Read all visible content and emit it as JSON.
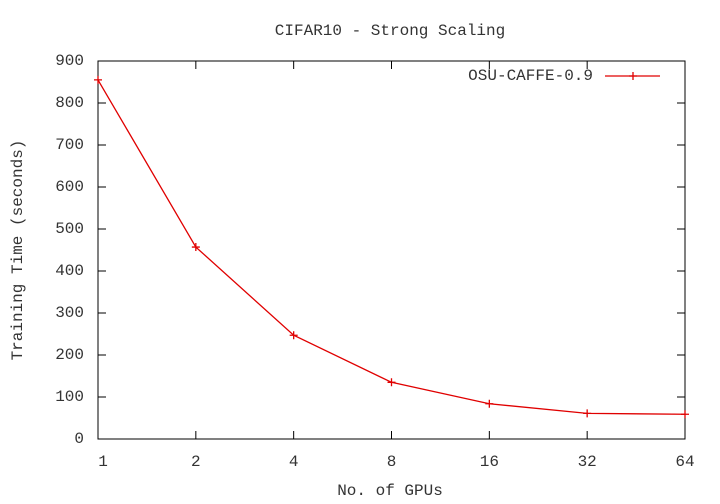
{
  "chart_data": {
    "type": "line",
    "title": "CIFAR10 - Strong Scaling",
    "xlabel": "No. of GPUs",
    "ylabel": "Training Time (seconds)",
    "x": [
      1,
      2,
      4,
      8,
      16,
      32,
      64
    ],
    "series": [
      {
        "name": "OSU-CAFFE-0.9",
        "color": "#e00000",
        "values": [
          855,
          457,
          247,
          135,
          84,
          61,
          59
        ]
      }
    ],
    "xlim": [
      1,
      64
    ],
    "xticks": [
      1,
      2,
      4,
      8,
      16,
      32,
      64
    ],
    "xscale": "log",
    "ylim": [
      0,
      900
    ],
    "yticks": [
      0,
      100,
      200,
      300,
      400,
      500,
      600,
      700,
      800,
      900
    ],
    "legend": "top-right"
  }
}
